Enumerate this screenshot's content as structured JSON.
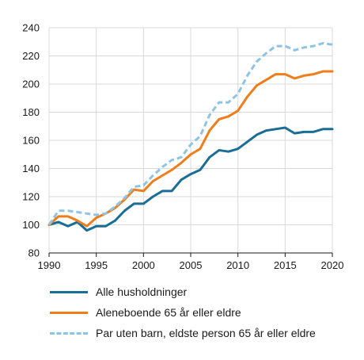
{
  "chart_data": {
    "type": "line",
    "title": "",
    "xlabel": "",
    "ylabel": "",
    "xlim": [
      1990,
      2020
    ],
    "ylim": [
      80,
      240
    ],
    "x_ticks": [
      "1990",
      "1995",
      "2000",
      "2005",
      "2010",
      "2015",
      "2020"
    ],
    "y_ticks": [
      "80",
      "100",
      "120",
      "140",
      "160",
      "180",
      "200",
      "220",
      "240"
    ],
    "grid": true,
    "legend_position": "bottom",
    "x": [
      1990,
      1991,
      1992,
      1993,
      1994,
      1995,
      1996,
      1997,
      1998,
      1999,
      2000,
      2001,
      2002,
      2003,
      2004,
      2005,
      2006,
      2007,
      2008,
      2009,
      2010,
      2011,
      2012,
      2013,
      2014,
      2015,
      2016,
      2017,
      2018,
      2019,
      2020
    ],
    "series": [
      {
        "name": "Alle husholdninger",
        "color": "#1a6e96",
        "dash": "solid",
        "values": [
          100,
          102,
          99,
          102,
          96,
          99,
          99,
          103,
          110,
          115,
          115,
          120,
          124,
          124,
          132,
          136,
          139,
          148,
          153,
          152,
          154,
          159,
          164,
          167,
          168,
          169,
          165,
          166,
          166,
          168,
          168
        ]
      },
      {
        "name": "Aleneboende 65 år eller eldre",
        "color": "#ef7d1a",
        "dash": "solid",
        "values": [
          100,
          106,
          106,
          103,
          99,
          105,
          108,
          112,
          118,
          125,
          124,
          131,
          135,
          139,
          144,
          150,
          154,
          167,
          175,
          177,
          181,
          191,
          199,
          203,
          207,
          207,
          204,
          206,
          207,
          209,
          209
        ]
      },
      {
        "name": "Par uten barn, eldste person 65 år eller eldre",
        "color": "#8ec4e3",
        "dash": "dashed",
        "values": [
          100,
          110,
          110,
          109,
          108,
          107,
          108,
          113,
          119,
          127,
          128,
          135,
          141,
          146,
          148,
          157,
          163,
          178,
          187,
          187,
          193,
          206,
          216,
          222,
          227,
          227,
          224,
          226,
          227,
          229,
          228
        ]
      }
    ]
  }
}
